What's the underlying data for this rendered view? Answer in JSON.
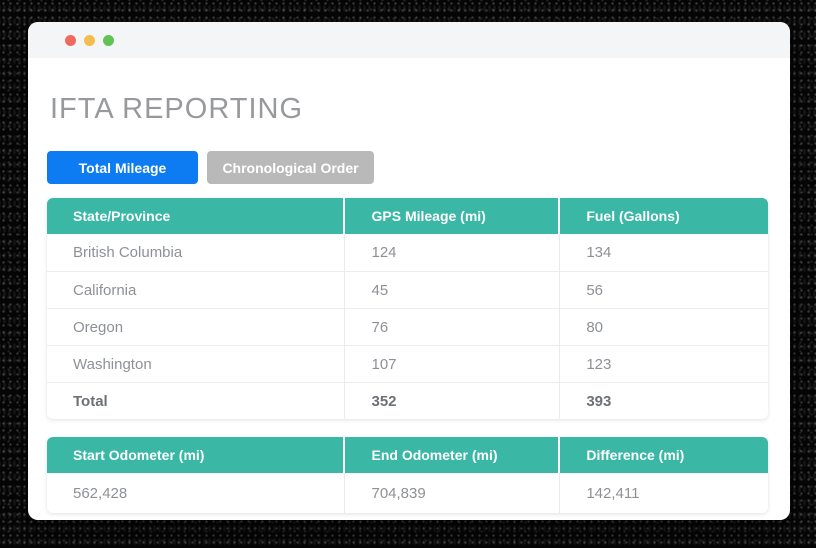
{
  "window": {
    "controls": [
      "close",
      "minimize",
      "zoom"
    ]
  },
  "page": {
    "title": "IFTA REPORTING"
  },
  "buttons": {
    "total_mileage": "Total Mileage",
    "chronological": "Chronological Order"
  },
  "mileage": {
    "headers": [
      "State/Province",
      "GPS Mileage (mi)",
      "Fuel (Gallons)"
    ],
    "rows": [
      [
        "British Columbia",
        "124",
        "134"
      ],
      [
        "California",
        "45",
        "56"
      ],
      [
        "Oregon",
        "76",
        "80"
      ],
      [
        "Washington",
        "107",
        "123"
      ]
    ],
    "total": [
      "Total",
      "352",
      "393"
    ]
  },
  "odometer": {
    "headers": [
      "Start Odometer (mi)",
      "End Odometer (mi)",
      "Difference (mi)"
    ],
    "row": [
      "562,428",
      "704,839",
      "142,411"
    ]
  },
  "colors": {
    "header_teal": "#3bb7a6",
    "active_blue": "#0d7bf2",
    "inactive_gray": "#b9b9b9",
    "title_gray": "#97999d"
  }
}
